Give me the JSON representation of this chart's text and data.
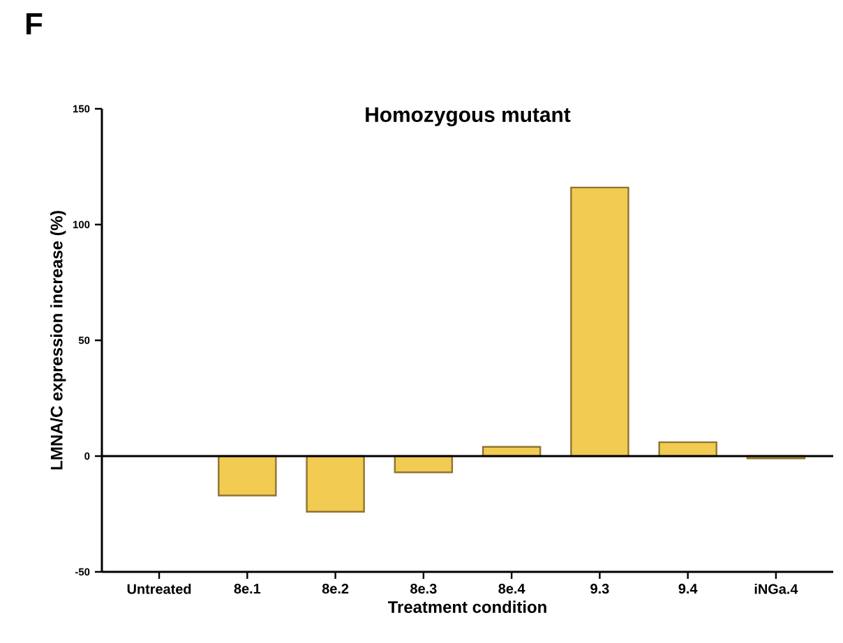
{
  "chart_data": {
    "type": "bar",
    "title": "Homozygous mutant",
    "xlabel": "Treatment condition",
    "ylabel": "LMNA/C expression increase (%)",
    "categories": [
      "Untreated",
      "8e.1",
      "8e.2",
      "8e.3",
      "8e.4",
      "9.3",
      "9.4",
      "iNGa.4"
    ],
    "values": [
      null,
      -17,
      -24,
      -7,
      4,
      116,
      6,
      -1
    ],
    "color": "#f2cb52",
    "ylim": [
      -50,
      150
    ],
    "yticks": [
      -50,
      0,
      50,
      100,
      150
    ],
    "ref_lines": [
      {
        "axis": "y",
        "value": 0,
        "color": "#000000"
      }
    ],
    "annotations": [
      "F"
    ],
    "grid": false
  }
}
